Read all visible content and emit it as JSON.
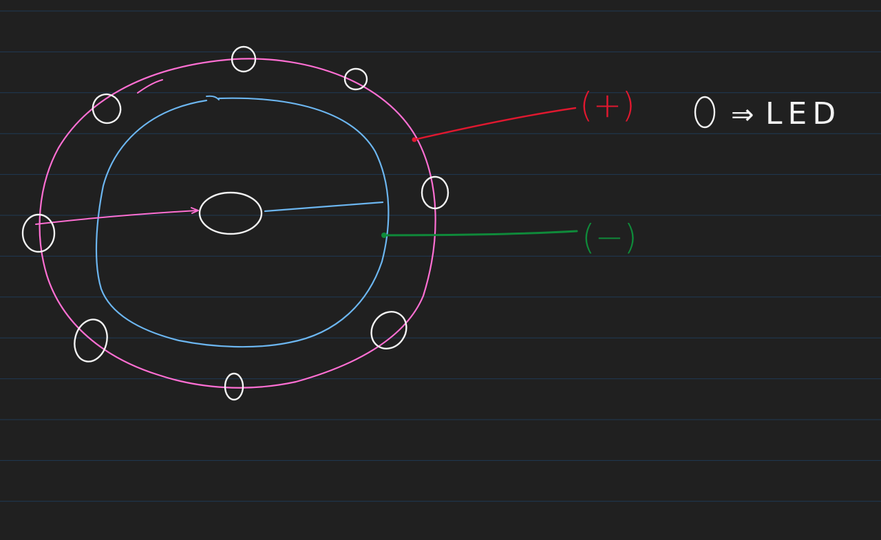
{
  "page": {
    "background": "#202020",
    "rule_color": "#1f3a55"
  },
  "colors": {
    "outer_ring": "#ff6fd3",
    "inner_ring": "#6cb6f0",
    "led": "#f2f2f2",
    "positive": "#e0182f",
    "negative": "#0f8a3a",
    "legend": "#f2f2f2"
  },
  "labels": {
    "positive": "(+)",
    "negative": "(−)"
  },
  "legend": {
    "arrow": "⇒",
    "text": "LED"
  }
}
